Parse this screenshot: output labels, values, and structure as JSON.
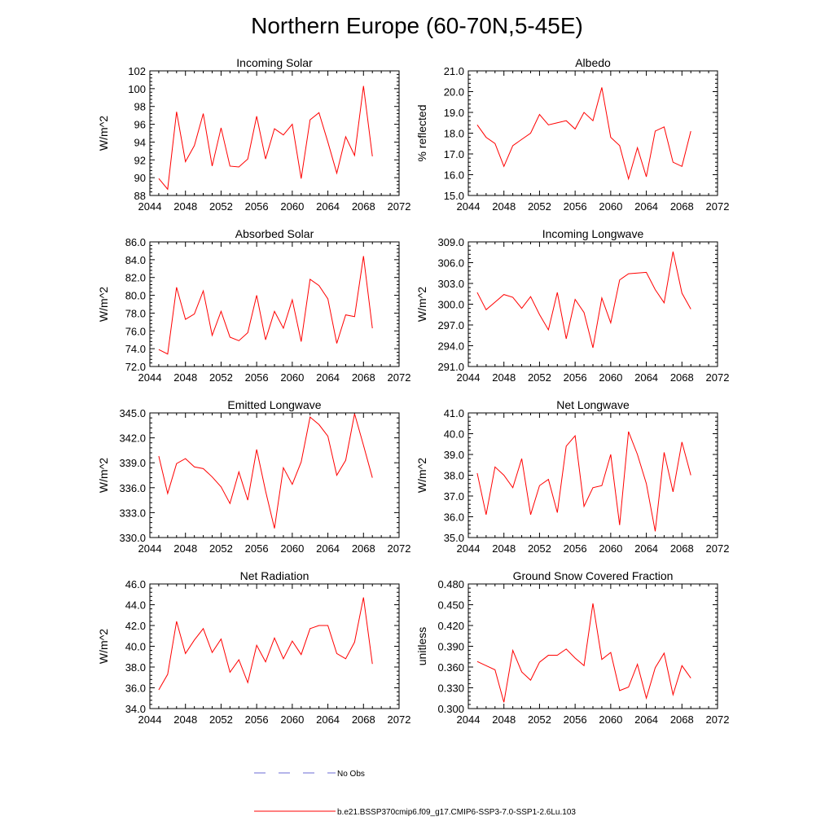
{
  "title": "Northern Europe (60-70N,5-45E)",
  "colors": {
    "model": "#ff0000",
    "obs": "#6b6bd6",
    "axis": "#000000"
  },
  "legend": {
    "obs_label": "No Obs",
    "model_label": "b.e21.BSSP370cmip6.f09_g17.CMIP6-SSP3-7.0-SSP1-2.6Lu.103"
  },
  "chart_data": [
    {
      "type": "line",
      "title": "Incoming Solar",
      "ylabel": "W/m^2",
      "xlim": [
        2044,
        2072
      ],
      "ylim": [
        88,
        102
      ],
      "xticks": [
        "2044",
        "2048",
        "2052",
        "2056",
        "2060",
        "2064",
        "2068",
        "2072"
      ],
      "yticks": [
        "88",
        "90",
        "92",
        "94",
        "96",
        "98",
        "100",
        "102"
      ],
      "series": [
        {
          "x": [
            2045,
            2046,
            2047,
            2048,
            2049,
            2050,
            2051,
            2052,
            2053,
            2054,
            2055,
            2056,
            2057,
            2058,
            2059,
            2060,
            2061,
            2062,
            2063,
            2064,
            2065,
            2066,
            2067,
            2068,
            2069
          ],
          "values": [
            89.9,
            88.7,
            97.4,
            91.8,
            93.6,
            97.2,
            91.3,
            95.6,
            91.3,
            91.2,
            92.1,
            96.9,
            92.1,
            95.5,
            94.8,
            96.0,
            89.9,
            96.5,
            97.3,
            94.0,
            90.5,
            94.6,
            92.5,
            100.3,
            92.4
          ]
        }
      ]
    },
    {
      "type": "line",
      "title": "Albedo",
      "ylabel": "% reflected",
      "xlim": [
        2044,
        2072
      ],
      "ylim": [
        15.0,
        21.0
      ],
      "xticks": [
        "2044",
        "2048",
        "2052",
        "2056",
        "2060",
        "2064",
        "2068",
        "2072"
      ],
      "yticks": [
        "15.0",
        "16.0",
        "17.0",
        "18.0",
        "19.0",
        "20.0",
        "21.0"
      ],
      "series": [
        {
          "x": [
            2045,
            2046,
            2047,
            2048,
            2049,
            2050,
            2051,
            2052,
            2053,
            2054,
            2055,
            2056,
            2057,
            2058,
            2059,
            2060,
            2061,
            2062,
            2063,
            2064,
            2065,
            2066,
            2067,
            2068,
            2069
          ],
          "values": [
            18.4,
            17.8,
            17.5,
            16.4,
            17.4,
            17.7,
            18.0,
            18.9,
            18.4,
            18.5,
            18.6,
            18.2,
            19.0,
            18.6,
            20.2,
            17.8,
            17.4,
            15.8,
            17.3,
            15.9,
            18.1,
            18.3,
            16.6,
            16.4,
            18.1
          ]
        }
      ]
    },
    {
      "type": "line",
      "title": "Absorbed Solar",
      "ylabel": "W/m^2",
      "xlim": [
        2044,
        2072
      ],
      "ylim": [
        72.0,
        86.0
      ],
      "xticks": [
        "2044",
        "2048",
        "2052",
        "2056",
        "2060",
        "2064",
        "2068",
        "2072"
      ],
      "yticks": [
        "72.0",
        "74.0",
        "76.0",
        "78.0",
        "80.0",
        "82.0",
        "84.0",
        "86.0"
      ],
      "series": [
        {
          "x": [
            2045,
            2046,
            2047,
            2048,
            2049,
            2050,
            2051,
            2052,
            2053,
            2054,
            2055,
            2056,
            2057,
            2058,
            2059,
            2060,
            2061,
            2062,
            2063,
            2064,
            2065,
            2066,
            2067,
            2068,
            2069
          ],
          "values": [
            73.9,
            73.4,
            80.9,
            77.3,
            77.9,
            80.5,
            75.5,
            78.2,
            75.3,
            74.9,
            75.8,
            80.0,
            75.0,
            78.2,
            76.3,
            79.5,
            74.8,
            81.8,
            81.1,
            79.6,
            74.6,
            77.8,
            77.6,
            84.4,
            76.3
          ]
        }
      ]
    },
    {
      "type": "line",
      "title": "Incoming Longwave",
      "ylabel": "W/m^2",
      "xlim": [
        2044,
        2072
      ],
      "ylim": [
        291.0,
        309.0
      ],
      "xticks": [
        "2044",
        "2048",
        "2052",
        "2056",
        "2060",
        "2064",
        "2068",
        "2072"
      ],
      "yticks": [
        "291.0",
        "294.0",
        "297.0",
        "300.0",
        "303.0",
        "306.0",
        "309.0"
      ],
      "series": [
        {
          "x": [
            2045,
            2046,
            2047,
            2048,
            2049,
            2050,
            2051,
            2052,
            2053,
            2054,
            2055,
            2056,
            2057,
            2058,
            2059,
            2060,
            2061,
            2062,
            2063,
            2064,
            2065,
            2066,
            2067,
            2068,
            2069
          ],
          "values": [
            301.7,
            299.2,
            300.3,
            301.4,
            301.0,
            299.4,
            301.1,
            298.5,
            296.3,
            301.7,
            295.0,
            300.7,
            298.8,
            293.7,
            300.9,
            297.3,
            303.5,
            304.4,
            304.5,
            304.6,
            302.1,
            300.2,
            307.6,
            301.6,
            299.3
          ]
        }
      ]
    },
    {
      "type": "line",
      "title": "Emitted Longwave",
      "ylabel": "W/m^2",
      "xlim": [
        2044,
        2072
      ],
      "ylim": [
        330.0,
        345.0
      ],
      "xticks": [
        "2044",
        "2048",
        "2052",
        "2056",
        "2060",
        "2064",
        "2068",
        "2072"
      ],
      "yticks": [
        "330.0",
        "333.0",
        "336.0",
        "339.0",
        "342.0",
        "345.0"
      ],
      "series": [
        {
          "x": [
            2045,
            2046,
            2047,
            2048,
            2049,
            2050,
            2051,
            2052,
            2053,
            2054,
            2055,
            2056,
            2057,
            2058,
            2059,
            2060,
            2061,
            2062,
            2063,
            2064,
            2065,
            2066,
            2067,
            2068,
            2069
          ],
          "values": [
            339.8,
            335.3,
            338.9,
            339.5,
            338.5,
            338.3,
            337.3,
            336.1,
            334.1,
            337.9,
            334.5,
            340.6,
            335.6,
            331.1,
            338.4,
            336.4,
            339.1,
            344.5,
            343.6,
            342.2,
            337.5,
            339.3,
            344.9,
            341.1,
            337.2
          ]
        }
      ]
    },
    {
      "type": "line",
      "title": "Net Longwave",
      "ylabel": "W/m^2",
      "xlim": [
        2044,
        2072
      ],
      "ylim": [
        35.0,
        41.0
      ],
      "xticks": [
        "2044",
        "2048",
        "2052",
        "2056",
        "2060",
        "2064",
        "2068",
        "2072"
      ],
      "yticks": [
        "35.0",
        "36.0",
        "37.0",
        "38.0",
        "39.0",
        "40.0",
        "41.0"
      ],
      "series": [
        {
          "x": [
            2045,
            2046,
            2047,
            2048,
            2049,
            2050,
            2051,
            2052,
            2053,
            2054,
            2055,
            2056,
            2057,
            2058,
            2059,
            2060,
            2061,
            2062,
            2063,
            2064,
            2065,
            2066,
            2067,
            2068,
            2069
          ],
          "values": [
            38.1,
            36.1,
            38.4,
            38.0,
            37.4,
            38.8,
            36.1,
            37.5,
            37.8,
            36.2,
            39.4,
            39.9,
            36.5,
            37.4,
            37.5,
            39.0,
            35.6,
            40.1,
            39.0,
            37.6,
            35.3,
            39.1,
            37.2,
            39.6,
            38.0
          ]
        }
      ]
    },
    {
      "type": "line",
      "title": "Net Radiation",
      "ylabel": "W/m^2",
      "xlim": [
        2044,
        2072
      ],
      "ylim": [
        34.0,
        46.0
      ],
      "xticks": [
        "2044",
        "2048",
        "2052",
        "2056",
        "2060",
        "2064",
        "2068",
        "2072"
      ],
      "yticks": [
        "34.0",
        "36.0",
        "38.0",
        "40.0",
        "42.0",
        "44.0",
        "46.0"
      ],
      "series": [
        {
          "x": [
            2045,
            2046,
            2047,
            2048,
            2049,
            2050,
            2051,
            2052,
            2053,
            2054,
            2055,
            2056,
            2057,
            2058,
            2059,
            2060,
            2061,
            2062,
            2063,
            2064,
            2065,
            2066,
            2067,
            2068,
            2069
          ],
          "values": [
            35.8,
            37.3,
            42.4,
            39.3,
            40.6,
            41.7,
            39.4,
            40.7,
            37.5,
            38.7,
            36.5,
            40.1,
            38.5,
            40.8,
            38.8,
            40.5,
            39.2,
            41.7,
            42.0,
            42.0,
            39.3,
            38.8,
            40.4,
            44.7,
            38.3
          ]
        }
      ]
    },
    {
      "type": "line",
      "title": "Ground Snow Covered Fraction",
      "ylabel": "unitless",
      "xlim": [
        2044,
        2072
      ],
      "ylim": [
        0.3,
        0.48
      ],
      "xticks": [
        "2044",
        "2048",
        "2052",
        "2056",
        "2060",
        "2064",
        "2068",
        "2072"
      ],
      "yticks": [
        "0.300",
        "0.330",
        "0.360",
        "0.390",
        "0.420",
        "0.450",
        "0.480"
      ],
      "series": [
        {
          "x": [
            2045,
            2046,
            2047,
            2048,
            2049,
            2050,
            2051,
            2052,
            2053,
            2054,
            2055,
            2056,
            2057,
            2058,
            2059,
            2060,
            2061,
            2062,
            2063,
            2064,
            2065,
            2066,
            2067,
            2068,
            2069
          ],
          "values": [
            0.368,
            0.362,
            0.356,
            0.309,
            0.384,
            0.353,
            0.341,
            0.367,
            0.377,
            0.377,
            0.386,
            0.373,
            0.362,
            0.452,
            0.371,
            0.381,
            0.326,
            0.331,
            0.364,
            0.315,
            0.359,
            0.38,
            0.32,
            0.362,
            0.344
          ]
        }
      ]
    }
  ]
}
